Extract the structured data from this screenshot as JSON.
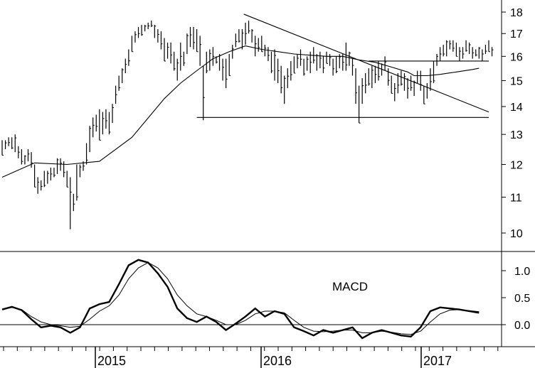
{
  "chart_data": [
    {
      "type": "bar",
      "subtype": "ohlc-weekly",
      "title": "",
      "x_ticks": [
        "2015",
        "2016",
        "2017"
      ],
      "y_ticks": [
        10,
        11,
        12,
        13,
        14,
        15,
        16,
        17,
        18
      ],
      "ylim": [
        9.7,
        18.3
      ],
      "y_axis_side": "right",
      "scale": "log",
      "bars": [
        [
          12.3,
          12.8
        ],
        [
          12.5,
          12.8
        ],
        [
          12.6,
          12.9
        ],
        [
          12.5,
          12.9
        ],
        [
          12.4,
          13.0
        ],
        [
          12.2,
          12.6
        ],
        [
          12.0,
          12.5
        ],
        [
          12.0,
          12.3
        ],
        [
          12.1,
          12.5
        ],
        [
          11.9,
          12.4
        ],
        [
          11.3,
          12.0
        ],
        [
          11.1,
          11.6
        ],
        [
          11.2,
          11.5
        ],
        [
          11.3,
          11.8
        ],
        [
          11.4,
          11.8
        ],
        [
          11.5,
          11.9
        ],
        [
          11.6,
          11.9
        ],
        [
          11.7,
          12.2
        ],
        [
          11.8,
          12.2
        ],
        [
          11.6,
          12.1
        ],
        [
          11.3,
          11.8
        ],
        [
          10.1,
          11.6
        ],
        [
          10.6,
          11.1
        ],
        [
          10.9,
          12.0
        ],
        [
          11.6,
          12.0
        ],
        [
          11.8,
          12.1
        ],
        [
          12.0,
          12.7
        ],
        [
          12.4,
          13.3
        ],
        [
          12.9,
          13.6
        ],
        [
          13.1,
          13.7
        ],
        [
          12.8,
          13.9
        ],
        [
          13.0,
          13.8
        ],
        [
          13.2,
          13.9
        ],
        [
          13.0,
          13.8
        ],
        [
          13.4,
          14.1
        ],
        [
          14.1,
          14.8
        ],
        [
          14.6,
          15.2
        ],
        [
          14.9,
          15.5
        ],
        [
          15.3,
          15.9
        ],
        [
          15.6,
          16.3
        ],
        [
          16.2,
          16.9
        ],
        [
          16.6,
          17.1
        ],
        [
          16.8,
          17.3
        ],
        [
          16.9,
          17.4
        ],
        [
          17.1,
          17.4
        ],
        [
          17.2,
          17.5
        ],
        [
          17.3,
          17.6
        ],
        [
          16.8,
          17.4
        ],
        [
          16.6,
          17.2
        ],
        [
          16.3,
          17.1
        ],
        [
          15.8,
          16.8
        ],
        [
          15.9,
          16.6
        ],
        [
          15.7,
          16.6
        ],
        [
          15.4,
          16.2
        ],
        [
          15.0,
          15.9
        ],
        [
          15.4,
          16.6
        ],
        [
          15.6,
          16.2
        ],
        [
          16.1,
          17.0
        ],
        [
          16.4,
          17.3
        ],
        [
          16.3,
          17.3
        ],
        [
          16.2,
          17.2
        ],
        [
          15.6,
          16.9
        ],
        [
          13.5,
          15.6
        ],
        [
          15.3,
          16.2
        ],
        [
          15.4,
          16.3
        ],
        [
          15.6,
          16.4
        ],
        [
          15.7,
          16.0
        ],
        [
          15.4,
          16.1
        ],
        [
          15.0,
          15.9
        ],
        [
          14.7,
          15.9
        ],
        [
          15.2,
          16.1
        ],
        [
          15.9,
          16.5
        ],
        [
          16.4,
          17.0
        ],
        [
          16.6,
          17.2
        ],
        [
          16.3,
          17.2
        ],
        [
          16.5,
          17.5
        ],
        [
          17.0,
          17.6
        ],
        [
          16.6,
          17.2
        ],
        [
          16.0,
          16.9
        ],
        [
          16.2,
          16.8
        ],
        [
          16.2,
          16.9
        ],
        [
          16.0,
          16.5
        ],
        [
          15.8,
          16.4
        ],
        [
          15.3,
          16.2
        ],
        [
          15.0,
          16.3
        ],
        [
          14.9,
          15.9
        ],
        [
          14.5,
          15.6
        ],
        [
          14.1,
          15.2
        ],
        [
          14.7,
          15.5
        ],
        [
          15.0,
          15.8
        ],
        [
          15.3,
          16.0
        ],
        [
          15.5,
          16.1
        ],
        [
          15.6,
          16.3
        ],
        [
          15.2,
          15.9
        ],
        [
          15.4,
          16.0
        ],
        [
          15.3,
          16.2
        ],
        [
          15.7,
          16.4
        ],
        [
          15.4,
          16.1
        ],
        [
          15.5,
          16.2
        ],
        [
          15.3,
          16.0
        ],
        [
          15.7,
          16.2
        ],
        [
          15.6,
          16.1
        ],
        [
          15.2,
          15.9
        ],
        [
          15.3,
          16.0
        ],
        [
          15.5,
          16.1
        ],
        [
          15.4,
          16.1
        ],
        [
          15.4,
          16.6
        ],
        [
          15.6,
          16.2
        ],
        [
          15.2,
          15.9
        ],
        [
          14.1,
          15.5
        ],
        [
          13.4,
          14.8
        ],
        [
          14.1,
          15.1
        ],
        [
          14.5,
          15.3
        ],
        [
          14.8,
          15.5
        ],
        [
          14.7,
          15.6
        ],
        [
          14.9,
          15.6
        ],
        [
          15.0,
          15.8
        ],
        [
          15.2,
          15.7
        ],
        [
          15.4,
          16.0
        ],
        [
          14.8,
          15.5
        ],
        [
          14.5,
          15.2
        ],
        [
          14.2,
          14.9
        ],
        [
          14.5,
          15.3
        ],
        [
          14.8,
          15.4
        ],
        [
          14.6,
          15.3
        ],
        [
          14.3,
          15.1
        ],
        [
          14.6,
          15.2
        ],
        [
          14.4,
          15.0
        ],
        [
          14.9,
          15.4
        ],
        [
          14.6,
          15.4
        ],
        [
          14.1,
          14.8
        ],
        [
          14.3,
          14.9
        ],
        [
          14.6,
          15.5
        ],
        [
          14.9,
          15.8
        ],
        [
          15.6,
          16.1
        ],
        [
          15.8,
          16.4
        ],
        [
          16.0,
          16.5
        ],
        [
          16.0,
          16.7
        ],
        [
          16.3,
          16.7
        ],
        [
          16.2,
          16.7
        ],
        [
          16.0,
          16.6
        ],
        [
          15.8,
          16.4
        ],
        [
          15.9,
          16.4
        ],
        [
          16.2,
          16.7
        ],
        [
          16.1,
          16.6
        ],
        [
          15.9,
          16.4
        ],
        [
          16.0,
          16.3
        ],
        [
          15.9,
          16.4
        ],
        [
          15.8,
          16.3
        ],
        [
          16.1,
          16.5
        ],
        [
          16.2,
          16.7
        ],
        [
          16.0,
          16.4
        ]
      ],
      "moving_average": [
        [
          0,
          11.6
        ],
        [
          10,
          12.05
        ],
        [
          20,
          12.0
        ],
        [
          30,
          12.1
        ],
        [
          40,
          12.9
        ],
        [
          50,
          14.3
        ],
        [
          55,
          14.9
        ],
        [
          60,
          15.4
        ],
        [
          65,
          15.9
        ],
        [
          70,
          16.2
        ],
        [
          75,
          16.45
        ],
        [
          80,
          16.3
        ],
        [
          85,
          16.2
        ],
        [
          90,
          16.1
        ],
        [
          95,
          16.05
        ],
        [
          100,
          16.0
        ],
        [
          105,
          16.0
        ],
        [
          110,
          15.85
        ],
        [
          115,
          15.75
        ],
        [
          120,
          15.55
        ],
        [
          125,
          15.35
        ],
        [
          127,
          15.2
        ],
        [
          131,
          15.2
        ],
        [
          135,
          15.25
        ],
        [
          140,
          15.35
        ],
        [
          145,
          15.45
        ],
        [
          147,
          15.5
        ]
      ],
      "trendlines": [
        {
          "x": [
            74.5,
            150
          ],
          "y": [
            17.9,
            13.8
          ]
        },
        {
          "x": [
            60,
            150
          ],
          "y": [
            13.6,
            13.6
          ]
        },
        {
          "x": [
            113,
            150
          ],
          "y": [
            15.8,
            15.8
          ]
        }
      ]
    },
    {
      "type": "line",
      "title": "MACD",
      "y_ticks": [
        "1.0",
        "0.5",
        "0.0"
      ],
      "ylim": [
        -0.4,
        1.3
      ],
      "zero_line": true,
      "series": [
        {
          "values": [
            [
              0,
              0.28
            ],
            [
              3,
              0.33
            ],
            [
              6,
              0.27
            ],
            [
              9,
              0.1
            ],
            [
              12,
              -0.05
            ],
            [
              15,
              -0.02
            ],
            [
              18,
              -0.05
            ],
            [
              21,
              -0.15
            ],
            [
              24,
              -0.05
            ],
            [
              27,
              0.3
            ],
            [
              30,
              0.38
            ],
            [
              33,
              0.42
            ],
            [
              36,
              0.75
            ],
            [
              39,
              1.1
            ],
            [
              42,
              1.2
            ],
            [
              45,
              1.15
            ],
            [
              48,
              0.95
            ],
            [
              51,
              0.7
            ],
            [
              54,
              0.3
            ],
            [
              57,
              0.12
            ],
            [
              60,
              0.05
            ],
            [
              63,
              0.15
            ],
            [
              66,
              0.05
            ],
            [
              69,
              -0.1
            ],
            [
              72,
              0.02
            ],
            [
              75,
              0.15
            ],
            [
              78,
              0.3
            ],
            [
              81,
              0.15
            ],
            [
              84,
              0.25
            ],
            [
              87,
              0.2
            ],
            [
              90,
              -0.05
            ],
            [
              93,
              -0.12
            ],
            [
              96,
              -0.2
            ],
            [
              99,
              -0.1
            ],
            [
              102,
              -0.15
            ],
            [
              105,
              -0.1
            ],
            [
              108,
              -0.05
            ],
            [
              111,
              -0.25
            ],
            [
              114,
              -0.15
            ],
            [
              117,
              -0.1
            ],
            [
              120,
              -0.15
            ],
            [
              123,
              -0.2
            ],
            [
              126,
              -0.22
            ],
            [
              129,
              -0.05
            ],
            [
              132,
              0.25
            ],
            [
              135,
              0.32
            ],
            [
              138,
              0.3
            ],
            [
              141,
              0.28
            ],
            [
              144,
              0.25
            ],
            [
              147,
              0.22
            ]
          ]
        },
        {
          "values": [
            [
              0,
              0.28
            ],
            [
              3,
              0.32
            ],
            [
              6,
              0.28
            ],
            [
              9,
              0.15
            ],
            [
              12,
              0.05
            ],
            [
              15,
              0.0
            ],
            [
              18,
              -0.02
            ],
            [
              21,
              -0.05
            ],
            [
              24,
              -0.03
            ],
            [
              27,
              0.1
            ],
            [
              30,
              0.25
            ],
            [
              33,
              0.35
            ],
            [
              36,
              0.55
            ],
            [
              39,
              0.85
            ],
            [
              42,
              1.05
            ],
            [
              45,
              1.15
            ],
            [
              48,
              1.05
            ],
            [
              51,
              0.85
            ],
            [
              54,
              0.55
            ],
            [
              57,
              0.35
            ],
            [
              60,
              0.2
            ],
            [
              63,
              0.15
            ],
            [
              66,
              0.08
            ],
            [
              69,
              0.0
            ],
            [
              72,
              0.0
            ],
            [
              75,
              0.08
            ],
            [
              78,
              0.2
            ],
            [
              81,
              0.25
            ],
            [
              84,
              0.25
            ],
            [
              87,
              0.22
            ],
            [
              90,
              0.08
            ],
            [
              93,
              -0.05
            ],
            [
              96,
              -0.12
            ],
            [
              99,
              -0.13
            ],
            [
              102,
              -0.12
            ],
            [
              105,
              -0.1
            ],
            [
              108,
              -0.1
            ],
            [
              111,
              -0.15
            ],
            [
              114,
              -0.15
            ],
            [
              117,
              -0.12
            ],
            [
              120,
              -0.14
            ],
            [
              123,
              -0.17
            ],
            [
              126,
              -0.18
            ],
            [
              129,
              -0.12
            ],
            [
              132,
              0.05
            ],
            [
              135,
              0.2
            ],
            [
              138,
              0.27
            ],
            [
              141,
              0.28
            ],
            [
              144,
              0.26
            ],
            [
              147,
              0.24
            ]
          ]
        }
      ]
    }
  ]
}
